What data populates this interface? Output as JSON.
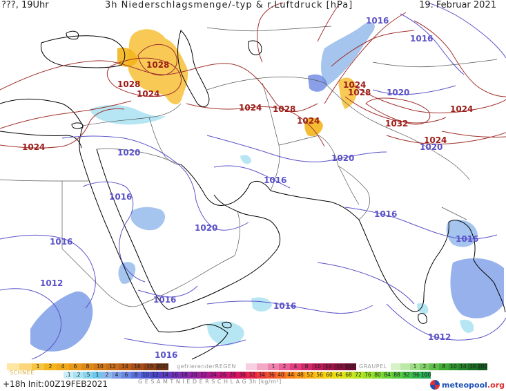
{
  "header": {
    "left": "???, 19Uhr",
    "title": "3h Niederschlagsmenge/-typ & r.Luftdruck [hPa]",
    "date": "19. Februar 2021"
  },
  "isobar_labels": [
    {
      "text": "1016",
      "type": "low"
    },
    {
      "text": "1016",
      "type": "low"
    },
    {
      "text": "1024",
      "type": "high"
    },
    {
      "text": "1028",
      "type": "high"
    },
    {
      "text": "1028",
      "type": "high"
    },
    {
      "text": "1024",
      "type": "high"
    },
    {
      "text": "1024",
      "type": "high"
    },
    {
      "text": "1028",
      "type": "high"
    },
    {
      "text": "1024",
      "type": "high"
    },
    {
      "text": "1028",
      "type": "high"
    },
    {
      "text": "1020",
      "type": "low"
    },
    {
      "text": "1024",
      "type": "high"
    },
    {
      "text": "1032",
      "type": "high"
    },
    {
      "text": "1024",
      "type": "high"
    },
    {
      "text": "1020",
      "type": "low"
    },
    {
      "text": "1024",
      "type": "high"
    },
    {
      "text": "1020",
      "type": "low"
    },
    {
      "text": "1020",
      "type": "low"
    },
    {
      "text": "1016",
      "type": "low"
    },
    {
      "text": "1016",
      "type": "low"
    },
    {
      "text": "1020",
      "type": "low"
    },
    {
      "text": "1016",
      "type": "low"
    },
    {
      "text": "1016",
      "type": "low"
    },
    {
      "text": "1012",
      "type": "low"
    },
    {
      "text": "1016",
      "type": "low"
    },
    {
      "text": "1016",
      "type": "low"
    },
    {
      "text": "1016",
      "type": "low"
    },
    {
      "text": "1012",
      "type": "low"
    }
  ],
  "legend": {
    "snow": {
      "title": "SCHNEE",
      "values": [
        "",
        "",
        "1",
        "2",
        "4",
        "6",
        "8",
        "10",
        "12",
        "14",
        "16",
        "18",
        "2025+"
      ],
      "colors": [
        "#fde7a3",
        "#fbd67a",
        "#f7c442",
        "#f3b51c",
        "#f0a81a",
        "#e8981a",
        "#dd8818",
        "#d27a18",
        "#c76c18",
        "#bb5e18",
        "#a84e18",
        "#8e4016",
        "#6e3214"
      ]
    },
    "freezing_rain": {
      "title": "gefrierenderREGEN",
      "values": [
        "",
        "",
        "1",
        "2",
        "4",
        "8",
        "10",
        "14",
        "16",
        "2025+"
      ],
      "colors": [
        "#f7cfe0",
        "#f3a9c6",
        "#ee84ad",
        "#e86097",
        "#e0407f",
        "#d12a6a",
        "#bb1c58",
        "#a11449",
        "#87103c",
        "#6e0c31"
      ]
    },
    "graupel": {
      "title": "GRAUPEL",
      "values": [
        "",
        "",
        "1",
        "2",
        "4",
        "8",
        "10",
        "14",
        "16",
        "2025+"
      ],
      "colors": [
        "#d6f2c6",
        "#bde8a8",
        "#9fdc86",
        "#7fcd66",
        "#5fbd4a",
        "#42aa36",
        "#2f9630",
        "#23822a",
        "#1a6e24",
        "#135b1e"
      ]
    },
    "total": {
      "title": "G E S A M T N I E D E R S C H L A G   3h   [kg/m²]",
      "values": [
        ".1",
        ".2",
        ".5",
        "1",
        "2",
        "4",
        "6",
        "8",
        "10",
        "12",
        "14",
        "16",
        "18",
        "20",
        "22",
        "24",
        "26",
        "28",
        "30",
        "32",
        "34",
        "36",
        "40",
        "44",
        "48",
        "52",
        "56",
        "60",
        "64",
        "68",
        "72",
        "76",
        "80",
        "84",
        "88",
        "92",
        "96",
        "100"
      ],
      "colors": [
        "#c9eef7",
        "#a9e2f2",
        "#8ad5ee",
        "#6cc7ea",
        "#8fb6ea",
        "#7c9ee6",
        "#6b87e2",
        "#5b70dd",
        "#4c58d6",
        "#4a46cc",
        "#5b3cc4",
        "#6e33ba",
        "#812bb0",
        "#9422a5",
        "#a51b98",
        "#b6168a",
        "#c6127b",
        "#d4106c",
        "#e0145a",
        "#e8244a",
        "#ee3a3a",
        "#f2522c",
        "#f56a22",
        "#f7821c",
        "#f89a18",
        "#f9b214",
        "#f7c612",
        "#f1d612",
        "#e4e014",
        "#d0e41a",
        "#b8e620",
        "#9ee228",
        "#86dc30",
        "#6ed538",
        "#58cc40",
        "#44c248",
        "#34b64e",
        "#27a854"
      ]
    }
  },
  "footer": {
    "run": "+18h Init:00Z19FEB2021",
    "logo_name": "meteopool",
    "logo_tld": ".org"
  }
}
